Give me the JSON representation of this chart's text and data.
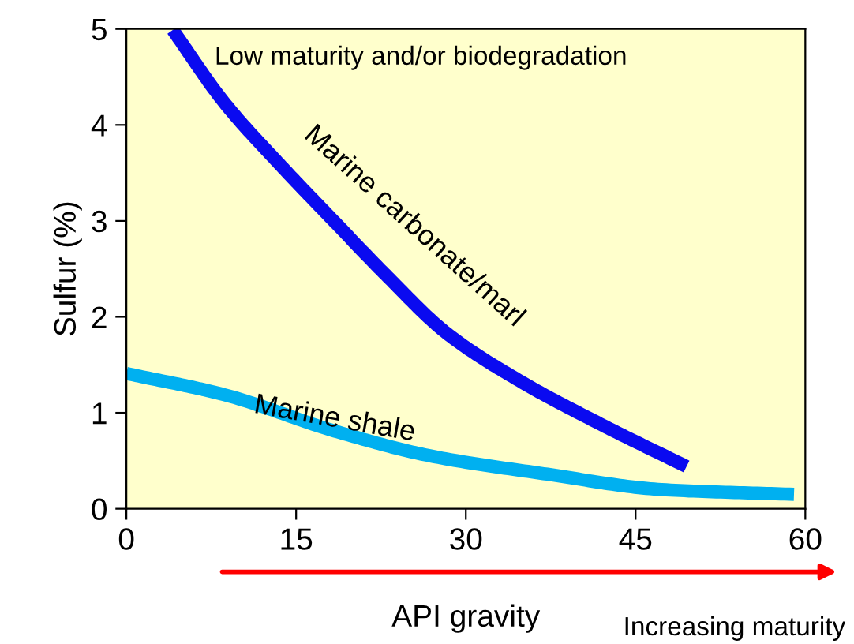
{
  "chart_data": {
    "type": "line",
    "xlabel": "API gravity",
    "ylabel": "Sulfur (%)",
    "xlim": [
      0,
      60
    ],
    "xticks": [
      0,
      15,
      30,
      45,
      60
    ],
    "ylim": [
      0,
      5
    ],
    "yticks": [
      0,
      1,
      2,
      3,
      4,
      5
    ],
    "grid": false,
    "legend": false,
    "marker": "none",
    "line_style": "solid",
    "series": [
      {
        "name": "Marine carbonate/marl",
        "color": "#0a0af0",
        "x": [
          4.1,
          8.6,
          13.7,
          18.4,
          22.9,
          28.3,
          34.8,
          42.1,
          49.5
        ],
        "values": [
          4.99,
          4.24,
          3.57,
          2.99,
          2.44,
          1.83,
          1.33,
          0.87,
          0.44
        ]
      },
      {
        "name": "Marine shale",
        "color": "#00b0f0",
        "x": [
          0,
          8.6,
          18.4,
          26.9,
          37.2,
          47.3,
          59.0
        ],
        "values": [
          1.41,
          1.19,
          0.81,
          0.55,
          0.36,
          0.2,
          0.15
        ]
      }
    ],
    "annotations": [
      "Low maturity and/or biodegradation",
      "Increasing maturity"
    ]
  }
}
